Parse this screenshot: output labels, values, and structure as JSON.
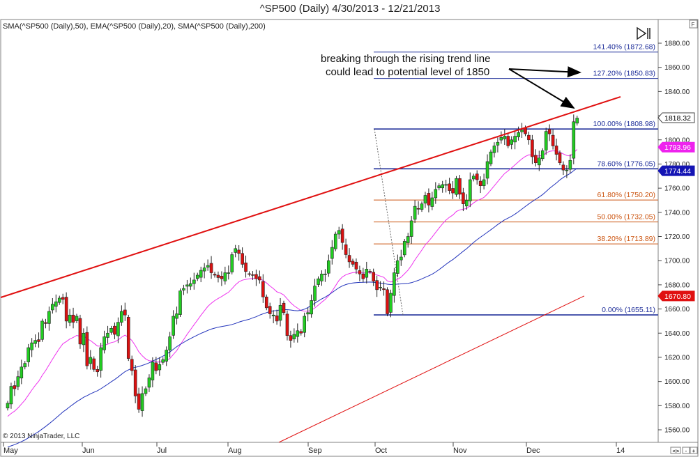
{
  "chart_data": {
    "type": "candlestick",
    "title": "^SP500 (Daily)  4/30/2013 - 12/21/2013",
    "indicators_legend": "SMA(^SP500 (Daily),50), EMA(^SP500 (Daily),20), SMA(^SP500 (Daily),200)",
    "copyright": "© 2013 NinjaTrader, LLC",
    "x_tick_labels": [
      "May",
      "Jun",
      "Jul",
      "Aug",
      "Sep",
      "Oct",
      "Nov",
      "Dec",
      "14"
    ],
    "y_tick_labels": [
      "1560.00",
      "1580.00",
      "1600.00",
      "1620.00",
      "1640.00",
      "1660.00",
      "1680.00",
      "1700.00",
      "1720.00",
      "1740.00",
      "1760.00",
      "1780.00",
      "1800.00",
      "1820.00",
      "1840.00",
      "1860.00",
      "1880.00"
    ],
    "ylim": [
      1552,
      1892
    ],
    "grid": false,
    "annotation": {
      "line1": "breaking through the rising trend line",
      "line2": "could lead to potential level of 1850"
    },
    "fib_levels": [
      {
        "label": "141.40% (1872.68)",
        "value": 1872.68,
        "color": "#1f2f9a"
      },
      {
        "label": "127.20% (1850.83)",
        "value": 1850.83,
        "color": "#1f2f9a"
      },
      {
        "label": "100.00% (1808.98)",
        "value": 1808.98,
        "color": "#1f2f9a"
      },
      {
        "label": "78.60% (1776.05)",
        "value": 1776.05,
        "color": "#1f2f9a"
      },
      {
        "label": "61.80% (1750.20)",
        "value": 1750.2,
        "color": "#cc5511"
      },
      {
        "label": "50.00% (1732.05)",
        "value": 1732.05,
        "color": "#cc5511"
      },
      {
        "label": "38.20% (1713.89)",
        "value": 1713.89,
        "color": "#cc5511"
      },
      {
        "label": "0.00% (1655.11)",
        "value": 1655.11,
        "color": "#1f2f9a"
      }
    ],
    "price_tags": [
      {
        "label": "1818.32",
        "value": 1818.32,
        "bg": "#ffffff",
        "fg": "#000000"
      },
      {
        "label": "1793.96",
        "value": 1793.96,
        "bg": "#ee22ee",
        "fg": "#ffffff"
      },
      {
        "label": "1774.44",
        "value": 1774.44,
        "bg": "#1414b4",
        "fg": "#ffffff"
      },
      {
        "label": "1670.80",
        "value": 1670.8,
        "bg": "#e01010",
        "fg": "#ffffff"
      }
    ],
    "closes": [
      1582,
      1596,
      1594,
      1604,
      1612,
      1615,
      1628,
      1632,
      1634,
      1633,
      1650,
      1648,
      1658,
      1664,
      1666,
      1669,
      1668,
      1650,
      1655,
      1649,
      1654,
      1631,
      1640,
      1613,
      1620,
      1610,
      1608,
      1628,
      1637,
      1640,
      1644,
      1639,
      1649,
      1658,
      1655,
      1619,
      1609,
      1588,
      1577,
      1590,
      1594,
      1603,
      1616,
      1609,
      1614,
      1618,
      1626,
      1637,
      1654,
      1656,
      1675,
      1677,
      1680,
      1681,
      1684,
      1688,
      1692,
      1694,
      1696,
      1690,
      1688,
      1686,
      1685,
      1690,
      1690,
      1705,
      1710,
      1706,
      1697,
      1691,
      1689,
      1688,
      1685,
      1684,
      1670,
      1661,
      1656,
      1655,
      1650,
      1663,
      1657,
      1638,
      1634,
      1639,
      1642,
      1640,
      1654,
      1657,
      1667,
      1679,
      1685,
      1689,
      1689,
      1700,
      1711,
      1722,
      1725,
      1715,
      1705,
      1699,
      1697,
      1693,
      1689,
      1685,
      1693,
      1691,
      1683,
      1676,
      1678,
      1676,
      1656,
      1673,
      1690,
      1700,
      1703,
      1716,
      1720,
      1733,
      1745,
      1743,
      1747,
      1754,
      1746,
      1752,
      1759,
      1762,
      1763,
      1763,
      1758,
      1756,
      1768,
      1755,
      1747,
      1750,
      1767,
      1770,
      1767,
      1762,
      1767,
      1782,
      1790,
      1795,
      1798,
      1802,
      1803,
      1795,
      1800,
      1803,
      1806,
      1808,
      1805,
      1800,
      1786,
      1781,
      1785,
      1791,
      1807,
      1805,
      1795,
      1788,
      1781,
      1775,
      1775,
      1783,
      1815,
      1818
    ]
  }
}
